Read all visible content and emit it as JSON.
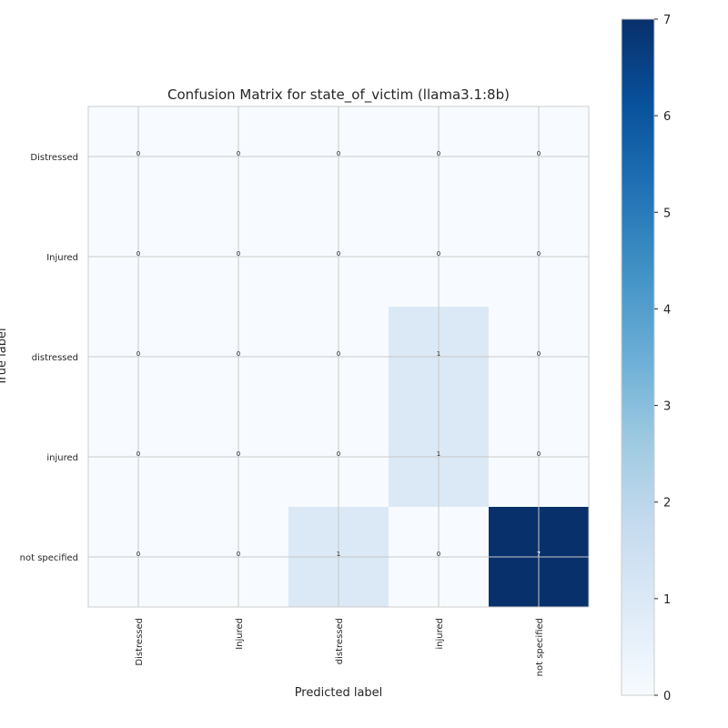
{
  "chart_data": {
    "type": "heatmap",
    "title": "Confusion Matrix for state_of_victim (llama3.1:8b)",
    "x_label": "Predicted label",
    "y_label": "True label",
    "categories": [
      "Distressed",
      "Injured",
      "distressed",
      "injured",
      "not specified"
    ],
    "y_categories": [
      "Distressed",
      "Injured",
      "distressed",
      "injured",
      "not specified"
    ],
    "values": [
      [
        0,
        0,
        0,
        0,
        0
      ],
      [
        0,
        0,
        0,
        0,
        0
      ],
      [
        0,
        0,
        0,
        1,
        0
      ],
      [
        0,
        0,
        0,
        1,
        0
      ],
      [
        0,
        0,
        1,
        0,
        7
      ]
    ],
    "zlim": [
      0,
      7
    ],
    "colorbar_ticks": [
      0,
      1,
      2,
      3,
      4,
      5,
      6,
      7
    ],
    "colormap": [
      "#f7fbff",
      "#deebf7",
      "#c6dbef",
      "#9ecae1",
      "#6baed6",
      "#4292c6",
      "#2171b5",
      "#08519c",
      "#08306b"
    ],
    "grid": true
  }
}
